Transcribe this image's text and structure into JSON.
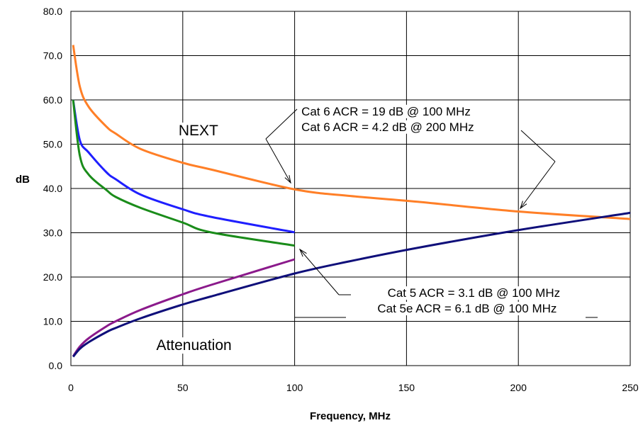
{
  "chart_data": {
    "type": "line",
    "title": "",
    "xlabel": "Frequency, MHz",
    "ylabel": "dB",
    "xlim": [
      0,
      250
    ],
    "ylim": [
      0,
      80
    ],
    "xticks": [
      "0",
      "50",
      "100",
      "150",
      "200",
      "250"
    ],
    "yticks": [
      "0.0",
      "10.0",
      "20.0",
      "30.0",
      "40.0",
      "50.0",
      "60.0",
      "70.0",
      "80.0"
    ],
    "grid": true,
    "legend": "none",
    "series": [
      {
        "color": "#ff7f27",
        "points": [
          [
            1,
            72.4
          ],
          [
            4,
            63
          ],
          [
            8,
            58.4
          ],
          [
            16,
            53.9
          ],
          [
            20,
            52.4
          ],
          [
            31.25,
            48.9
          ],
          [
            50,
            45.8
          ],
          [
            62.5,
            44.3
          ],
          [
            100,
            39.8
          ],
          [
            125,
            38.3
          ],
          [
            155,
            37
          ],
          [
            200,
            34.8
          ],
          [
            250,
            33.1
          ]
        ]
      },
      {
        "color": "#1f1fff",
        "points": [
          [
            1,
            60
          ],
          [
            4,
            50.9
          ],
          [
            8,
            48.1
          ],
          [
            16,
            43.6
          ],
          [
            20,
            42.1
          ],
          [
            31.25,
            38.6
          ],
          [
            50,
            35.3
          ],
          [
            62.5,
            33.6
          ],
          [
            100,
            30.1
          ]
        ]
      },
      {
        "color": "#1a8c1a",
        "points": [
          [
            1,
            60
          ],
          [
            4,
            47.4
          ],
          [
            8,
            43.1
          ],
          [
            16,
            39.6
          ],
          [
            20,
            38.1
          ],
          [
            31.25,
            35.6
          ],
          [
            50,
            32.3
          ],
          [
            62.5,
            30.1
          ],
          [
            100,
            27.1
          ]
        ]
      },
      {
        "color": "#8b1a8b",
        "points": [
          [
            1,
            2.1
          ],
          [
            4,
            4.3
          ],
          [
            8,
            6.2
          ],
          [
            16,
            8.9
          ],
          [
            20,
            10
          ],
          [
            31.25,
            12.6
          ],
          [
            50,
            16.1
          ],
          [
            62.5,
            18.2
          ],
          [
            100,
            24
          ]
        ]
      },
      {
        "color": "#0f0f7a",
        "points": [
          [
            1,
            2
          ],
          [
            4,
            3.8
          ],
          [
            8,
            5.3
          ],
          [
            16,
            7.6
          ],
          [
            20,
            8.5
          ],
          [
            31.25,
            10.7
          ],
          [
            50,
            13.8
          ],
          [
            62.5,
            15.6
          ],
          [
            100,
            20.8
          ],
          [
            125,
            23.6
          ],
          [
            155,
            26.6
          ],
          [
            200,
            30.6
          ],
          [
            250,
            34.5
          ]
        ]
      }
    ],
    "annotations": [
      {
        "text": "NEXT",
        "x": 57,
        "y": 52
      },
      {
        "text": "Attenuation",
        "x": 55,
        "y": 3.5
      },
      {
        "text": "Cat 6 ACR = 19 dB @ 100 MHz",
        "x": 103,
        "y": 56.5
      },
      {
        "text": "Cat 6 ACR = 4.2 dB @ 200 MHz",
        "x": 103,
        "y": 53
      },
      {
        "text": "Cat 5 ACR = 3.1 dB @ 100 MHz",
        "x": 141.5,
        "y": 15.5
      },
      {
        "text": "Cat 5e ACR = 6.1 dB @ 100 MHz",
        "x": 137,
        "y": 12
      }
    ]
  },
  "colors": {
    "plot_background": "#ffffff",
    "grid": "#000000",
    "arrow": "#000000"
  }
}
